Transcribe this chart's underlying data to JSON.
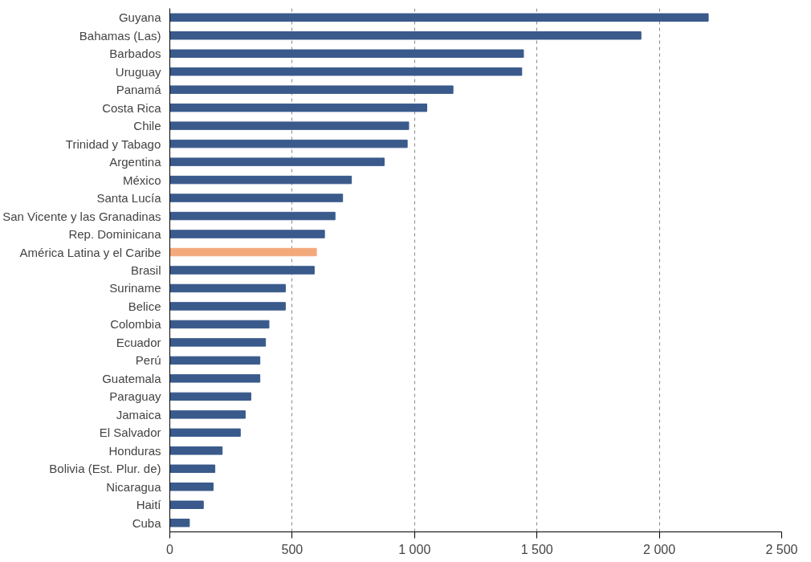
{
  "chart_data": {
    "type": "bar",
    "orientation": "horizontal",
    "categories": [
      "Guyana",
      "Bahamas (Las)",
      "Barbados",
      "Uruguay",
      "Panamá",
      "Costa Rica",
      "Chile",
      "Trinidad y Tabago",
      "Argentina",
      "México",
      "Santa Lucía",
      "San Vicente y las Granadinas",
      "Rep. Dominicana",
      "América Latina y el Caribe",
      "Brasil",
      "Suriname",
      "Belice",
      "Colombia",
      "Ecuador",
      "Perú",
      "Guatemala",
      "Paraguay",
      "Jamaica",
      "El Salvador",
      "Honduras",
      "Bolivia (Est. Plur. de)",
      "Nicaragua",
      "Haití",
      "Cuba"
    ],
    "values": [
      2200,
      1925,
      1445,
      1438,
      1157,
      1050,
      976,
      970,
      876,
      742,
      706,
      675,
      632,
      599,
      590,
      472,
      472,
      405,
      391,
      368,
      368,
      331,
      308,
      288,
      214,
      184,
      177,
      137,
      80
    ],
    "colors": [
      "#3a5a8c",
      "#3a5a8c",
      "#3a5a8c",
      "#3a5a8c",
      "#3a5a8c",
      "#3a5a8c",
      "#3a5a8c",
      "#3a5a8c",
      "#3a5a8c",
      "#3a5a8c",
      "#3a5a8c",
      "#3a5a8c",
      "#3a5a8c",
      "#f4a97b",
      "#3a5a8c",
      "#3a5a8c",
      "#3a5a8c",
      "#3a5a8c",
      "#3a5a8c",
      "#3a5a8c",
      "#3a5a8c",
      "#3a5a8c",
      "#3a5a8c",
      "#3a5a8c",
      "#3a5a8c",
      "#3a5a8c",
      "#3a5a8c",
      "#3a5a8c",
      "#3a5a8c"
    ],
    "xlim": [
      0,
      2500
    ],
    "xticks": [
      0,
      500,
      {
        "value": 1000,
        "label": "1 000"
      },
      {
        "value": 1500,
        "label": "1 500"
      },
      {
        "value": 2000,
        "label": "2 000"
      },
      {
        "value": 2500,
        "label": "2 500"
      }
    ],
    "grid": "x"
  }
}
